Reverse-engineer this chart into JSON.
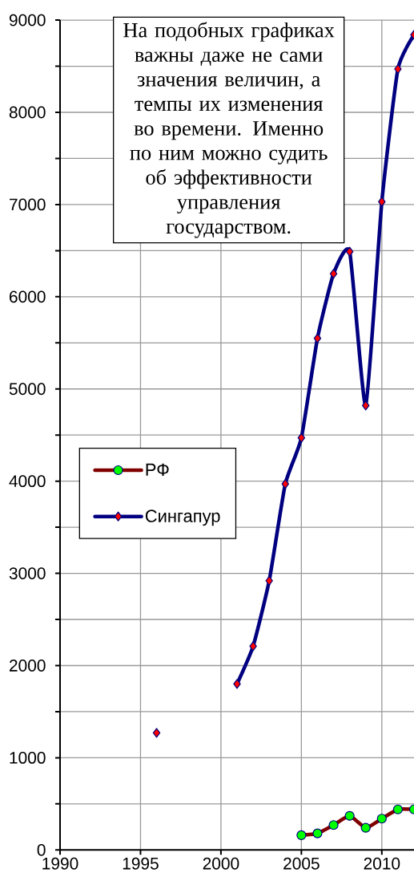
{
  "chart_data": {
    "type": "line",
    "xlim": [
      1990,
      2012
    ],
    "ylim": [
      0,
      9000
    ],
    "xticks": [
      1990,
      1995,
      2000,
      2005,
      2010
    ],
    "yticks": [
      0,
      {
        "value": 500,
        "label": null
      },
      1000,
      {
        "value": 1500,
        "label": null
      },
      2000,
      {
        "value": 2500,
        "label": null
      },
      3000,
      {
        "value": 3500,
        "label": null
      },
      4000,
      {
        "value": 4500,
        "label": null
      },
      5000,
      {
        "value": 5500,
        "label": null
      },
      6000,
      {
        "value": 6500,
        "label": null
      },
      7000,
      {
        "value": 7500,
        "label": null
      },
      8000,
      {
        "value": 8500,
        "label": null
      },
      9000
    ],
    "grid": true,
    "legend": "left",
    "series": [
      {
        "name": "РФ",
        "color": "#800000",
        "marker": "circle",
        "x": [
          2005,
          2006,
          2007,
          2008,
          2009,
          2010,
          2011,
          2012
        ],
        "values": [
          160,
          180,
          270,
          370,
          240,
          340,
          440,
          440
        ]
      },
      {
        "name": "Сингапур",
        "color": "#000080",
        "marker": "diamond",
        "x": [
          1996,
          1997,
          1998,
          1999,
          2000,
          2001,
          2002,
          2003,
          2004,
          2005,
          2006,
          2007,
          2008,
          2009,
          2010,
          2011,
          2012
        ],
        "values": [
          1270,
          null,
          null,
          null,
          null,
          1800,
          2210,
          2920,
          3970,
          4470,
          5550,
          6250,
          6490,
          4820,
          7030,
          8470,
          8840
        ]
      }
    ],
    "annotations": [
      "На подобных графиках важны даже не сами значения величин, а темпы их изменения во времени. Именно по ним можно судить об эффективности управления государством."
    ]
  }
}
